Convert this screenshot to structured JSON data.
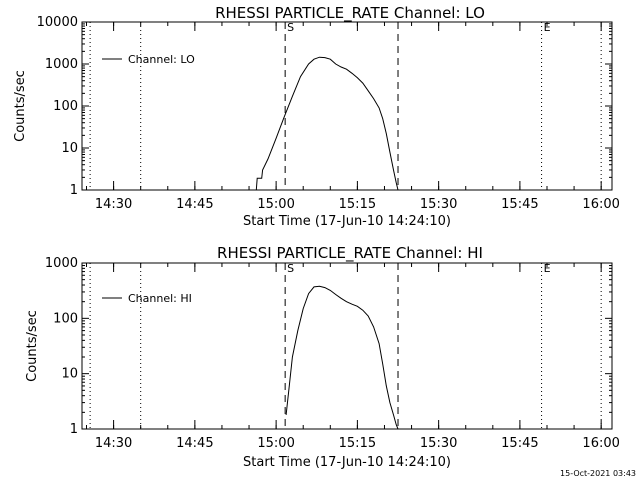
{
  "footer": {
    "timestamp": "15-Oct-2021 03:43"
  },
  "chart_data": [
    {
      "type": "line",
      "title": "RHESSI PARTICLE_RATE Channel: LO",
      "xlabel": "Start Time (17-Jun-10 14:24:10)",
      "ylabel": "Counts/sec",
      "ylog": true,
      "ylim": [
        1,
        10000
      ],
      "yticks": [
        "1",
        "10",
        "100",
        "1000",
        "10000"
      ],
      "xlim": [
        "14:24:10",
        "16:02"
      ],
      "xticks": [
        "14:30",
        "14:45",
        "15:00",
        "15:15",
        "15:30",
        "15:45",
        "16:00"
      ],
      "legend": {
        "position": "top-left"
      },
      "series": [
        {
          "name": "Channel: LO",
          "x": [
            "14:56:20",
            "14:56:30",
            "14:57:20",
            "14:57:30",
            "14:58:30",
            "15:00:00",
            "15:01:30",
            "15:03:00",
            "15:04:30",
            "15:06:00",
            "15:07:00",
            "15:08:00",
            "15:09:00",
            "15:10:00",
            "15:11:00",
            "15:12:00",
            "15:13:00",
            "15:14:00",
            "15:15:00",
            "15:16:00",
            "15:17:00",
            "15:18:00",
            "15:19:00",
            "15:19:40",
            "15:20:20",
            "15:21:00",
            "15:21:40",
            "15:22:10",
            "15:22:30"
          ],
          "values": [
            1.0,
            1.9,
            1.9,
            3.0,
            5.5,
            17,
            55,
            170,
            500,
            1000,
            1300,
            1450,
            1420,
            1300,
            1000,
            850,
            750,
            600,
            470,
            350,
            230,
            150,
            90,
            50,
            22,
            8,
            3,
            1.5,
            1.0
          ]
        }
      ],
      "markers": [
        {
          "label": "",
          "style": "dotted",
          "x": "14:25:40"
        },
        {
          "label": "",
          "style": "dotted",
          "x": "14:35:00"
        },
        {
          "label": "S",
          "style": "dashed",
          "x": "15:01:40"
        },
        {
          "label": "",
          "style": "dashed",
          "x": "15:22:30"
        },
        {
          "label": "E",
          "style": "dotted",
          "x": "15:49:00"
        },
        {
          "label": "",
          "style": "dotted",
          "x": "16:00:00"
        }
      ]
    },
    {
      "type": "line",
      "title": "RHESSI PARTICLE_RATE Channel: HI",
      "xlabel": "Start Time (17-Jun-10 14:24:10)",
      "ylabel": "Counts/sec",
      "ylog": true,
      "ylim": [
        1,
        1000
      ],
      "yticks": [
        "1",
        "10",
        "100",
        "1000"
      ],
      "xlim": [
        "14:24:10",
        "16:02"
      ],
      "xticks": [
        "14:30",
        "14:45",
        "15:00",
        "15:15",
        "15:30",
        "15:45",
        "16:00"
      ],
      "legend": {
        "position": "top-left"
      },
      "series": [
        {
          "name": "Channel: HI",
          "x": [
            "15:01:50",
            "15:02:20",
            "15:03:00",
            "15:04:00",
            "15:05:00",
            "15:06:00",
            "15:07:00",
            "15:08:00",
            "15:09:00",
            "15:10:00",
            "15:11:00",
            "15:12:00",
            "15:13:00",
            "15:14:00",
            "15:15:00",
            "15:16:00",
            "15:17:00",
            "15:18:00",
            "15:19:00",
            "15:19:40",
            "15:20:20",
            "15:21:00",
            "15:21:40",
            "15:22:10",
            "15:22:30"
          ],
          "values": [
            1.8,
            5,
            20,
            60,
            150,
            280,
            370,
            380,
            360,
            320,
            270,
            230,
            200,
            180,
            165,
            140,
            110,
            70,
            35,
            15,
            6,
            3,
            1.8,
            1.2,
            1.0
          ]
        }
      ],
      "markers": [
        {
          "label": "",
          "style": "dotted",
          "x": "14:25:40"
        },
        {
          "label": "",
          "style": "dotted",
          "x": "14:35:00"
        },
        {
          "label": "S",
          "style": "dashed",
          "x": "15:01:40"
        },
        {
          "label": "",
          "style": "dashed",
          "x": "15:22:30"
        },
        {
          "label": "E",
          "style": "dotted",
          "x": "15:49:00"
        },
        {
          "label": "",
          "style": "dotted",
          "x": "16:00:00"
        }
      ]
    }
  ]
}
